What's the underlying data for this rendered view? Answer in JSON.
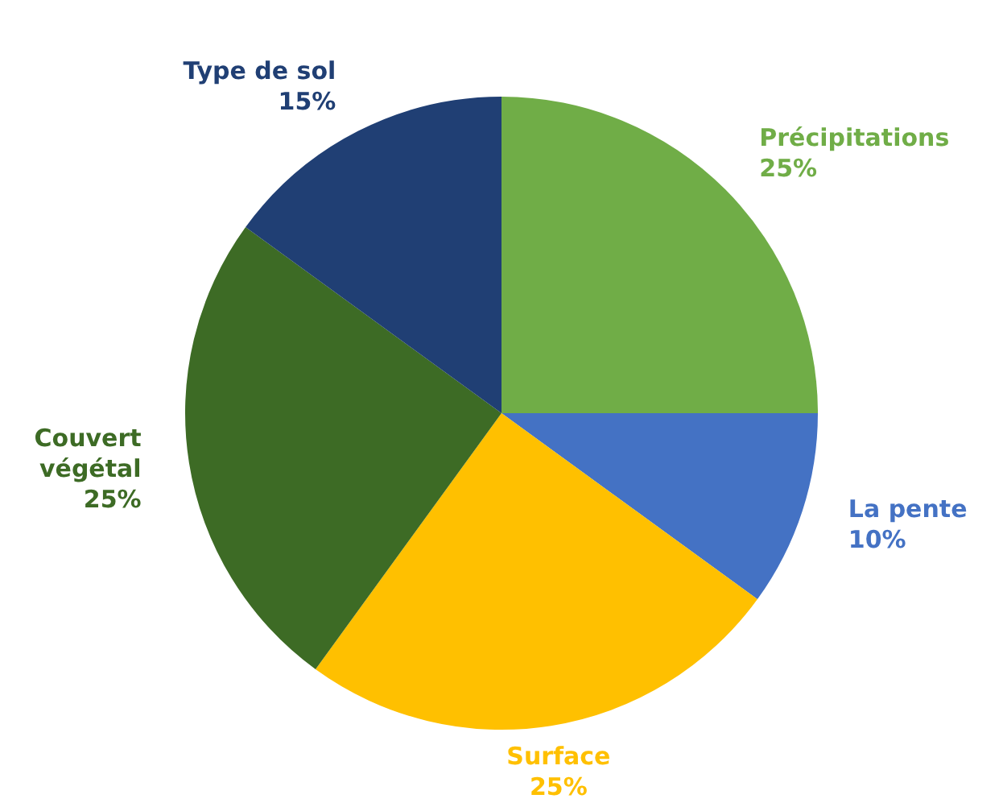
{
  "chart_data": {
    "type": "pie",
    "categories": [
      "Précipitations",
      "La pente",
      "Surface",
      "Couvert végétal",
      "Type de sol"
    ],
    "values": [
      25,
      10,
      25,
      25,
      15
    ],
    "value_labels": [
      "25%",
      "10%",
      "25%",
      "25%",
      "15%"
    ],
    "colors": [
      "#70ad47",
      "#4472c4",
      "#ffc000",
      "#3d6b25",
      "#203f74"
    ],
    "legend": false
  }
}
